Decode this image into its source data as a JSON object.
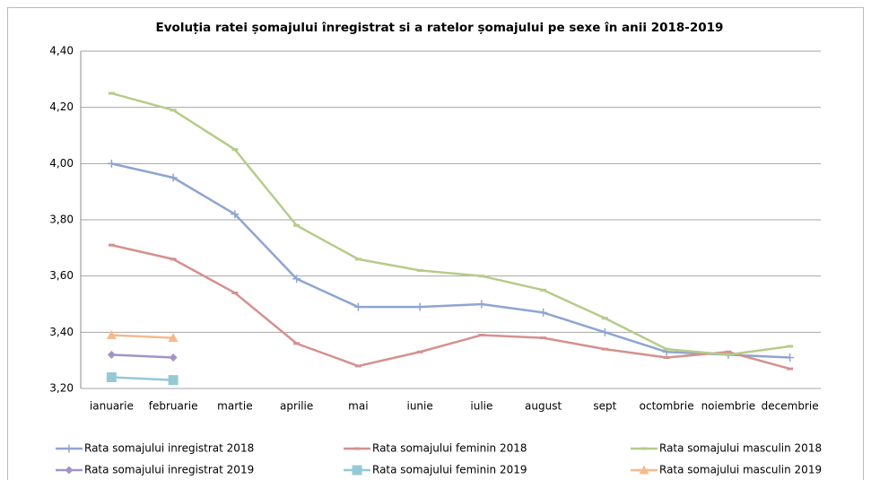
{
  "chart_data": {
    "type": "line",
    "title": "Evoluția ratei șomajului înregistrat si a ratelor șomajului pe sexe în anii 2018-2019",
    "categories": [
      "ianuarie",
      "februarie",
      "martie",
      "aprilie",
      "mai",
      "iunie",
      "iulie",
      "august",
      "sept",
      "octombrie",
      "noiembrie",
      "decembrie"
    ],
    "ylim": [
      3.2,
      4.4
    ],
    "yticks": [
      {
        "value": 3.2,
        "label": "3,20"
      },
      {
        "value": 3.4,
        "label": "3,40"
      },
      {
        "value": 3.6,
        "label": "3,60"
      },
      {
        "value": 3.8,
        "label": "3,80"
      },
      {
        "value": 4.0,
        "label": "4,00"
      },
      {
        "value": 4.2,
        "label": "4,20"
      },
      {
        "value": 4.4,
        "label": "4,40"
      }
    ],
    "grid": true,
    "legend": "bottom",
    "series": [
      {
        "name": "Rata somajului inregistrat 2018",
        "color": "#8ea5d0",
        "marker": "plus",
        "values": [
          4.0,
          3.95,
          3.82,
          3.59,
          3.49,
          3.49,
          3.5,
          3.47,
          3.4,
          3.33,
          3.32,
          3.31
        ]
      },
      {
        "name": "Rata somajului feminin 2018",
        "color": "#d4918e",
        "marker": "dash",
        "values": [
          3.71,
          3.66,
          3.54,
          3.36,
          3.28,
          3.33,
          3.39,
          3.38,
          3.34,
          3.31,
          3.33,
          3.27
        ]
      },
      {
        "name": "Rata somajului masculin 2018",
        "color": "#b5cc8a",
        "marker": "dash",
        "values": [
          4.25,
          4.19,
          4.05,
          3.78,
          3.66,
          3.62,
          3.6,
          3.55,
          3.45,
          3.34,
          3.32,
          3.35
        ]
      },
      {
        "name": "Rata somajului inregistrat 2019",
        "color": "#a493c4",
        "marker": "diamond",
        "values": [
          3.32,
          3.31,
          null,
          null,
          null,
          null,
          null,
          null,
          null,
          null,
          null,
          null
        ]
      },
      {
        "name": "Rata somajului feminin 2019",
        "color": "#95c9d6",
        "marker": "square",
        "values": [
          3.24,
          3.23,
          null,
          null,
          null,
          null,
          null,
          null,
          null,
          null,
          null,
          null
        ]
      },
      {
        "name": "Rata somajului masculin 2019",
        "color": "#f6b98f",
        "marker": "triangle",
        "values": [
          3.39,
          3.38,
          null,
          null,
          null,
          null,
          null,
          null,
          null,
          null,
          null,
          null
        ]
      }
    ]
  }
}
